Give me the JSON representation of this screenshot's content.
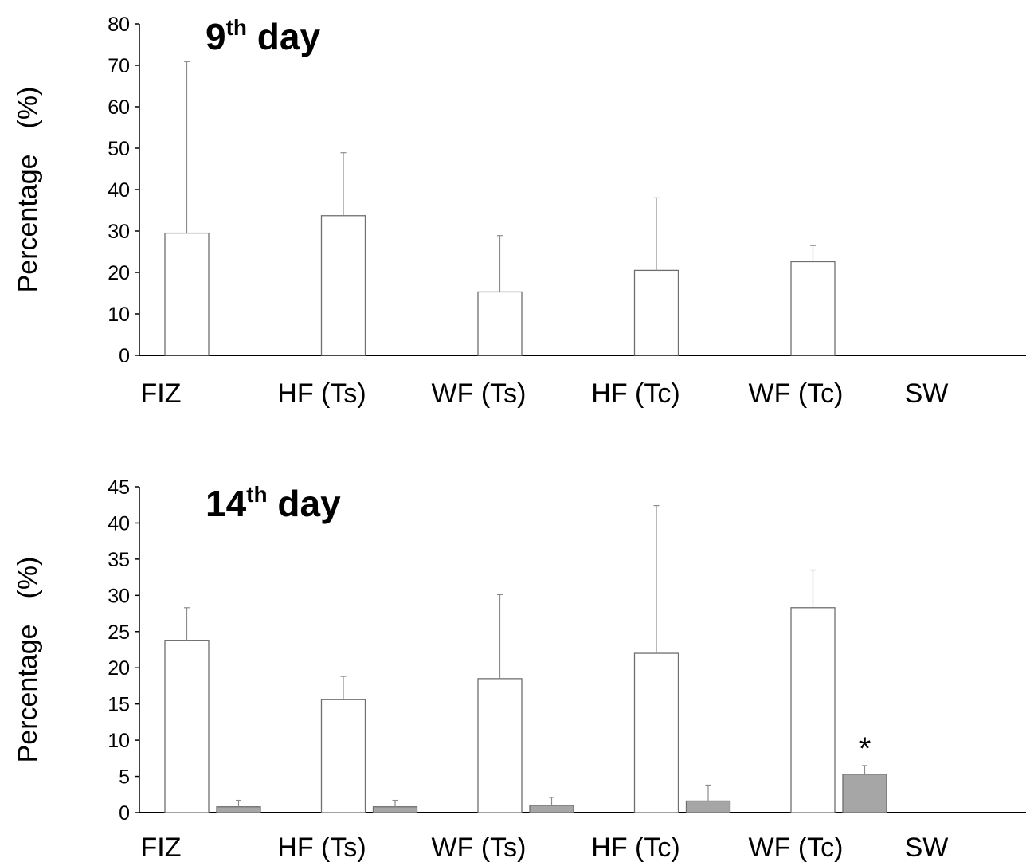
{
  "chart_data": [
    {
      "type": "bar",
      "title": {
        "main": "9",
        "sup": "th",
        "rest": " day"
      },
      "ylabel_left": "Percentage",
      "ylabel_right": "(%)",
      "categories": [
        "FIZ",
        "HF (Ts)",
        "WF (Ts)",
        "HF (Tc)",
        "WF (Tc)",
        "SW"
      ],
      "ylim": [
        0,
        80
      ],
      "yticks": [
        0,
        10,
        20,
        30,
        40,
        50,
        60,
        70,
        80
      ],
      "series": [
        {
          "fill": "#ffffff",
          "values": [
            29.5,
            33.7,
            15.3,
            20.5,
            22.6,
            null
          ],
          "errors": [
            41.4,
            15.2,
            13.6,
            17.5,
            3.9,
            null
          ]
        }
      ],
      "annotations": []
    },
    {
      "type": "bar",
      "title": {
        "main": "14",
        "sup": "th",
        "rest": " day"
      },
      "ylabel_left": "Percentage",
      "ylabel_right": "(%)",
      "categories": [
        "FIZ",
        "HF (Ts)",
        "WF (Ts)",
        "HF (Tc)",
        "WF (Tc)",
        "SW"
      ],
      "ylim": [
        0,
        45
      ],
      "yticks": [
        0,
        5,
        10,
        15,
        20,
        25,
        30,
        35,
        40,
        45
      ],
      "series": [
        {
          "fill": "#ffffff",
          "values": [
            23.8,
            15.6,
            18.5,
            22.0,
            28.3,
            null
          ],
          "errors": [
            4.5,
            3.2,
            11.6,
            20.4,
            5.2,
            null
          ]
        },
        {
          "fill": "#a6a6a6",
          "values": [
            0.8,
            0.8,
            1.0,
            1.6,
            5.3,
            null
          ],
          "errors": [
            0.9,
            0.9,
            1.1,
            2.2,
            1.2,
            null
          ]
        }
      ],
      "annotations": [
        {
          "category": "WF (Tc)",
          "series": 1,
          "text": "*"
        }
      ]
    }
  ]
}
